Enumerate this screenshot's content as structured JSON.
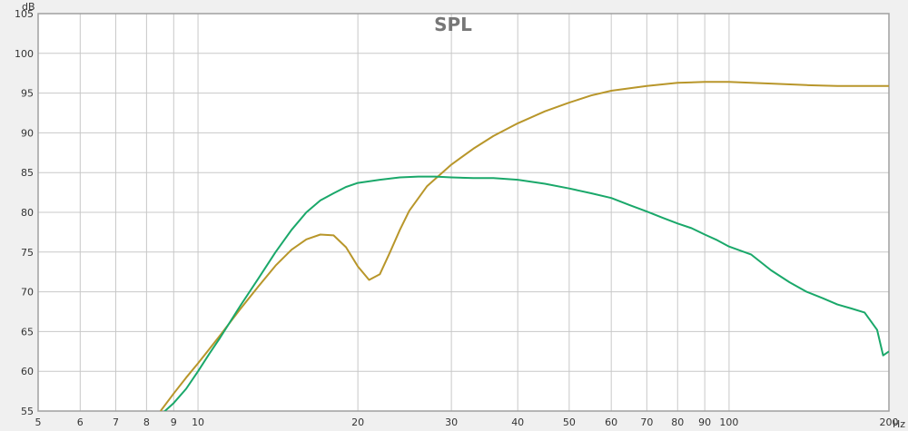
{
  "colors": {
    "background": "#f0f0f0",
    "plot_background": "#ffffff",
    "grid": "#c8c8c8",
    "frame": "#a0a0a0"
  },
  "chart_data": {
    "type": "line",
    "title": "SPL",
    "ylabel": "dB",
    "xlabel_unit": "Hz",
    "x_scale": "log",
    "xlim": [
      5,
      200
    ],
    "ylim": [
      55,
      105
    ],
    "grid": true,
    "x_ticks": [
      5,
      6,
      7,
      8,
      9,
      10,
      20,
      30,
      40,
      50,
      60,
      70,
      80,
      90,
      100,
      200
    ],
    "x_tick_labels": [
      "5",
      "6",
      "7",
      "8",
      "9",
      "10",
      "20",
      "30",
      "40",
      "50",
      "60",
      "70",
      "80",
      "90",
      "100",
      "200"
    ],
    "y_ticks": [
      55,
      60,
      65,
      70,
      75,
      80,
      85,
      90,
      95,
      100,
      105
    ],
    "y_tick_labels": [
      "55",
      "60",
      "65",
      "70",
      "75",
      "80",
      "85",
      "90",
      "95",
      "100",
      "105"
    ],
    "series": [
      {
        "color": "#b8962a",
        "x": [
          8.5,
          9,
          9.5,
          10,
          10.5,
          11,
          12,
          13,
          14,
          15,
          16,
          17,
          18,
          19,
          20,
          21,
          22,
          23,
          24,
          25,
          27,
          30,
          33,
          36,
          40,
          45,
          50,
          55,
          60,
          70,
          80,
          90,
          100,
          110,
          120,
          140,
          160,
          180,
          200
        ],
        "y": [
          55.0,
          57.2,
          59.2,
          61.0,
          62.8,
          64.5,
          67.8,
          70.7,
          73.3,
          75.3,
          76.6,
          77.2,
          77.1,
          75.6,
          73.2,
          71.5,
          72.2,
          75.0,
          77.8,
          80.2,
          83.3,
          86.0,
          88.0,
          89.6,
          91.2,
          92.7,
          93.8,
          94.7,
          95.3,
          95.9,
          96.3,
          96.4,
          96.4,
          96.3,
          96.2,
          96.0,
          95.9,
          95.9,
          95.9
        ]
      },
      {
        "color": "#1aa86a",
        "x": [
          8.5,
          9,
          9.5,
          10,
          10.5,
          11,
          12,
          13,
          14,
          15,
          16,
          17,
          18,
          19,
          20,
          22,
          24,
          26,
          28,
          30,
          33,
          36,
          40,
          45,
          50,
          55,
          60,
          65,
          70,
          75,
          80,
          85,
          90,
          95,
          100,
          110,
          120,
          130,
          140,
          150,
          160,
          170,
          180,
          190,
          195,
          200
        ],
        "y": [
          54.5,
          56.0,
          57.8,
          60.0,
          62.2,
          64.2,
          68.2,
          71.7,
          75.0,
          77.8,
          80.0,
          81.5,
          82.4,
          83.2,
          83.7,
          84.1,
          84.4,
          84.5,
          84.5,
          84.4,
          84.3,
          84.3,
          84.1,
          83.6,
          83.0,
          82.4,
          81.8,
          80.9,
          80.1,
          79.3,
          78.6,
          78.0,
          77.2,
          76.5,
          75.7,
          74.7,
          72.7,
          71.2,
          70.0,
          69.2,
          68.4,
          67.9,
          67.4,
          65.2,
          62.0,
          62.5
        ]
      }
    ]
  }
}
